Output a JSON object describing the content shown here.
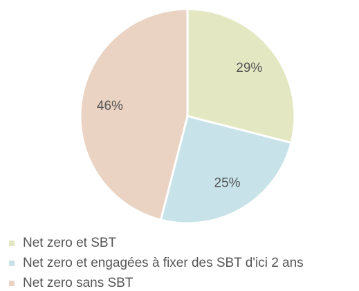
{
  "chart_data": {
    "type": "pie",
    "categories": [
      "Net zero et SBT",
      "Net zero et engagées à fixer des SBT d'ici 2 ans",
      "Net zero sans SBT"
    ],
    "values": [
      29,
      25,
      46
    ],
    "value_labels": [
      "29%",
      "25%",
      "46%"
    ],
    "colors": [
      "#e3e8c2",
      "#c7e2e8",
      "#ead3c3"
    ],
    "legend": "bottom"
  }
}
